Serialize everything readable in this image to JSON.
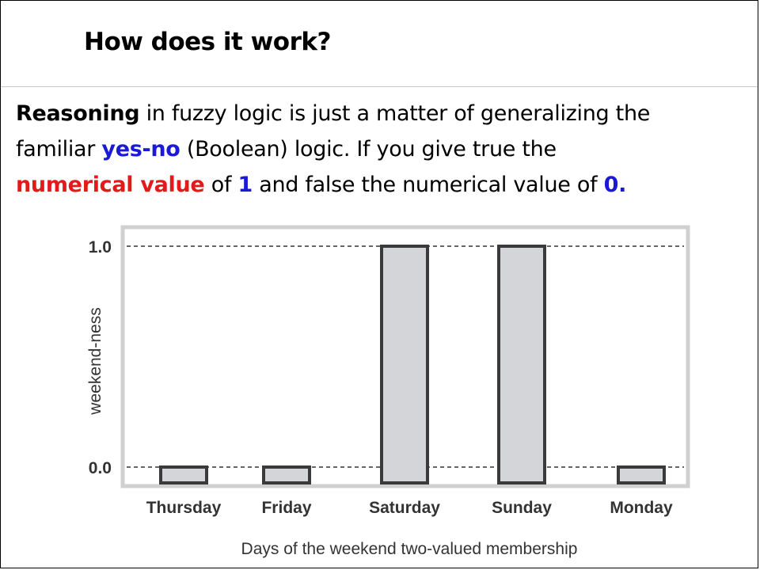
{
  "slide": {
    "title": "How does it work?",
    "paragraph": {
      "line1": {
        "t1": "Reasoning",
        "t2": " in fuzzy logic is just a matter of generalizing the"
      },
      "line2": {
        "t1": "familiar ",
        "t2": "yes-no",
        "t3": " (Boolean) logic. If you give true the"
      },
      "line3": {
        "t1": "numerical value",
        "t2": " of ",
        "t3": "1",
        "t4": " and false the numerical value of ",
        "t5": "0."
      }
    },
    "colors": {
      "red": "#e41a1a",
      "blue": "#1a1ad6"
    }
  },
  "chart_data": {
    "type": "bar",
    "categories": [
      "Thursday",
      "Friday",
      "Saturday",
      "Sunday",
      "Monday"
    ],
    "values": [
      0.0,
      0.0,
      1.0,
      1.0,
      0.0
    ],
    "ylabel": "weekend-ness",
    "xlabel": "Days of the weekend two-valued membership",
    "yticks": [
      "1.0",
      "0.0"
    ],
    "ylim": [
      0,
      1
    ],
    "grid": "dashed lines at 0.0 and 1.0",
    "bar_color": "#d3d5d8",
    "bar_edge_color": "#3a3a3a",
    "frame_color": "#d0d0d0"
  }
}
